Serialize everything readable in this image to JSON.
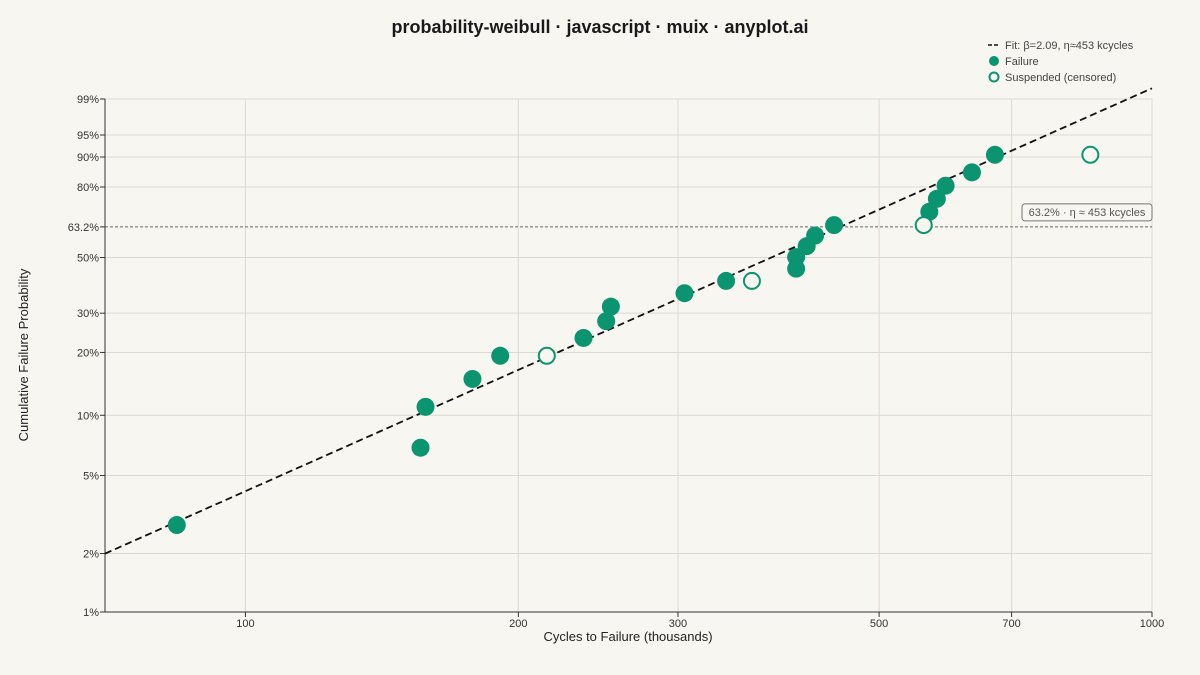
{
  "chart_data": {
    "type": "scatter",
    "title": "probability-weibull · javascript · muix · anyplot.ai",
    "xlabel": "Cycles to Failure (thousands)",
    "ylabel": "Cumulative Failure Probability",
    "x_scale": "log",
    "y_scale": "weibull",
    "xlim": [
      70,
      1000
    ],
    "ylim": [
      0.01,
      0.99
    ],
    "x_ticks": [
      100,
      200,
      300,
      500,
      700,
      1000
    ],
    "x_tick_labels": [
      "100",
      "200",
      "300",
      "500",
      "700",
      "1000"
    ],
    "y_ticks": [
      0.01,
      0.02,
      0.05,
      0.1,
      0.2,
      0.3,
      0.5,
      0.632,
      0.8,
      0.9,
      0.95,
      0.99
    ],
    "y_tick_labels": [
      "1%",
      "2%",
      "5%",
      "10%",
      "20%",
      "30%",
      "50%",
      "63.2%",
      "80%",
      "90%",
      "95%",
      "99%"
    ],
    "grid": true,
    "legend_position": "top-right",
    "colors": {
      "failure": "#0b9470",
      "fit": "#111111",
      "reference": "#666666"
    },
    "fit": {
      "name": "Fit: β=2.09, η≈453 kcycles",
      "beta": 2.09,
      "eta": 453
    },
    "reference_line": {
      "y": 0.632,
      "label": "63.2% · η ≈ 453 kcycles"
    },
    "series": [
      {
        "name": "Failure",
        "marker": "filled",
        "points": [
          {
            "x": 84,
            "y": 0.028
          },
          {
            "x": 156,
            "y": 0.069
          },
          {
            "x": 158,
            "y": 0.11
          },
          {
            "x": 178,
            "y": 0.15
          },
          {
            "x": 191,
            "y": 0.193
          },
          {
            "x": 236,
            "y": 0.233
          },
          {
            "x": 250,
            "y": 0.277
          },
          {
            "x": 253,
            "y": 0.32
          },
          {
            "x": 305,
            "y": 0.364
          },
          {
            "x": 339,
            "y": 0.408
          },
          {
            "x": 405,
            "y": 0.455
          },
          {
            "x": 405,
            "y": 0.502
          },
          {
            "x": 416,
            "y": 0.548
          },
          {
            "x": 425,
            "y": 0.594
          },
          {
            "x": 446,
            "y": 0.64
          },
          {
            "x": 568,
            "y": 0.698
          },
          {
            "x": 579,
            "y": 0.753
          },
          {
            "x": 592,
            "y": 0.805
          },
          {
            "x": 633,
            "y": 0.853
          },
          {
            "x": 671,
            "y": 0.906
          }
        ]
      },
      {
        "name": "Suspended (censored)",
        "marker": "hollow",
        "points": [
          {
            "x": 215,
            "y": 0.193
          },
          {
            "x": 362,
            "y": 0.408
          },
          {
            "x": 560,
            "y": 0.64
          },
          {
            "x": 855,
            "y": 0.906
          }
        ]
      }
    ]
  }
}
